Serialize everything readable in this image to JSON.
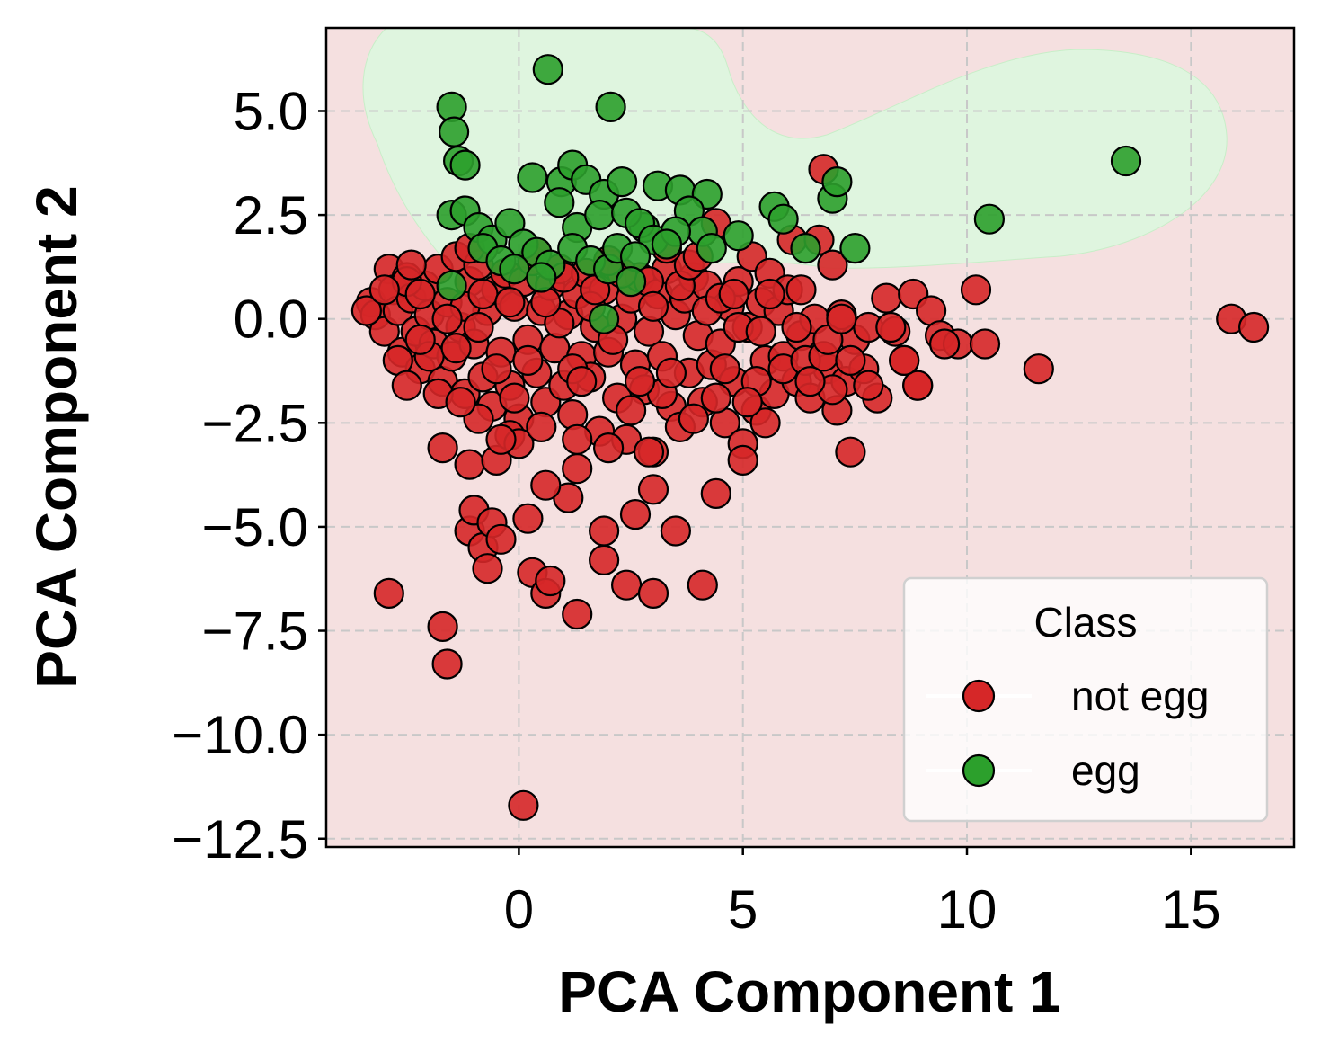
{
  "chart_data": {
    "type": "scatter",
    "xlabel": "PCA Component 1",
    "ylabel": "PCA Component 2",
    "xlim": [
      -4.3,
      17.3
    ],
    "ylim": [
      -12.7,
      7.0
    ],
    "xticks": [
      0,
      5,
      10,
      15
    ],
    "yticks": [
      5.0,
      2.5,
      0.0,
      -2.5,
      -5.0,
      -7.5,
      -10.0,
      -12.5
    ],
    "xtick_labels": [
      "0",
      "5",
      "10",
      "15"
    ],
    "ytick_labels": [
      "5.0",
      "2.5",
      "0.0",
      "−2.5",
      "−5.0",
      "−7.5",
      "−10.0",
      "−12.5"
    ],
    "grid": true,
    "background_regions": {
      "not egg_color": "#f5e0e0",
      "egg_color": "#dff5df"
    },
    "legend": {
      "title": "Class",
      "placement": "lower right",
      "entries": [
        {
          "label": "not egg",
          "color": "#d62728"
        },
        {
          "label": "egg",
          "color": "#2ca02c"
        }
      ]
    },
    "series": [
      {
        "name": "not egg",
        "color": "#d62728",
        "points": [
          [
            -3.3,
            0.4
          ],
          [
            -3.2,
            0.1
          ],
          [
            -3.0,
            -0.3
          ],
          [
            -2.9,
            1.2
          ],
          [
            -2.8,
            0.7
          ],
          [
            -2.7,
            0.2
          ],
          [
            -2.6,
            -0.8
          ],
          [
            -2.5,
            1.0
          ],
          [
            -2.4,
            0.5
          ],
          [
            -2.3,
            -0.3
          ],
          [
            -2.2,
            -1.2
          ],
          [
            -2.1,
            0.8
          ],
          [
            -2.0,
            0.1
          ],
          [
            -1.9,
            -0.6
          ],
          [
            -1.8,
            1.2
          ],
          [
            -1.7,
            -1.5
          ],
          [
            -1.6,
            0.4
          ],
          [
            -1.5,
            -0.9
          ],
          [
            -1.4,
            1.5
          ],
          [
            -1.3,
            -0.2
          ],
          [
            -1.2,
            -1.8
          ],
          [
            -1.1,
            0.9
          ],
          [
            -1.0,
            -0.6
          ],
          [
            -0.9,
            1.3
          ],
          [
            -0.8,
            -1.4
          ],
          [
            -0.7,
            0.2
          ],
          [
            -0.6,
            -2.1
          ],
          [
            -0.5,
            0.7
          ],
          [
            -0.4,
            -0.8
          ],
          [
            -0.3,
            1.1
          ],
          [
            -0.2,
            -1.6
          ],
          [
            -0.1,
            0.3
          ],
          [
            0.0,
            -2.4
          ],
          [
            0.1,
            0.9
          ],
          [
            0.2,
            -0.5
          ],
          [
            0.3,
            1.4
          ],
          [
            0.4,
            -1.3
          ],
          [
            0.5,
            0.2
          ],
          [
            0.6,
            -2.0
          ],
          [
            0.7,
            0.8
          ],
          [
            0.8,
            -0.7
          ],
          [
            0.9,
            1.2
          ],
          [
            1.0,
            -1.6
          ],
          [
            1.1,
            0.1
          ],
          [
            1.2,
            -2.3
          ],
          [
            1.3,
            0.6
          ],
          [
            1.4,
            -0.9
          ],
          [
            1.5,
            1.1
          ],
          [
            1.6,
            -1.4
          ],
          [
            1.7,
            -0.2
          ],
          [
            1.8,
            -2.7
          ],
          [
            1.9,
            0.7
          ],
          [
            2.0,
            -0.8
          ],
          [
            2.1,
            1.3
          ],
          [
            2.2,
            -1.9
          ],
          [
            2.3,
            0.0
          ],
          [
            2.4,
            -2.9
          ],
          [
            2.5,
            0.5
          ],
          [
            2.6,
            -1.1
          ],
          [
            2.7,
            1.0
          ],
          [
            2.8,
            -1.7
          ],
          [
            2.9,
            -0.3
          ],
          [
            3.0,
            -3.2
          ],
          [
            3.1,
            0.6
          ],
          [
            3.2,
            -0.9
          ],
          [
            3.3,
            1.2
          ],
          [
            3.4,
            -2.1
          ],
          [
            3.5,
            0.1
          ],
          [
            3.6,
            -2.6
          ],
          [
            3.7,
            0.5
          ],
          [
            3.8,
            -1.3
          ],
          [
            3.9,
            1.0
          ],
          [
            4.0,
            -0.4
          ],
          [
            4.1,
            -2.0
          ],
          [
            4.2,
            0.8
          ],
          [
            4.3,
            -1.1
          ],
          [
            4.4,
            2.3
          ],
          [
            4.5,
            -0.6
          ],
          [
            4.6,
            -2.5
          ],
          [
            4.7,
            0.3
          ],
          [
            4.8,
            -1.5
          ],
          [
            4.9,
            0.9
          ],
          [
            5.0,
            -3.0
          ],
          [
            5.1,
            -0.2
          ],
          [
            5.2,
            1.5
          ],
          [
            5.3,
            -2.2
          ],
          [
            5.4,
            0.4
          ],
          [
            5.5,
            -1.0
          ],
          [
            5.6,
            1.1
          ],
          [
            5.7,
            -1.8
          ],
          [
            5.8,
            0.2
          ],
          [
            5.9,
            -0.9
          ],
          [
            6.0,
            0.7
          ],
          [
            6.1,
            1.9
          ],
          [
            6.2,
            -1.5
          ],
          [
            6.3,
            -0.4
          ],
          [
            6.5,
            -1.9
          ],
          [
            6.6,
            0.0
          ],
          [
            6.7,
            1.9
          ],
          [
            6.8,
            3.6
          ],
          [
            6.9,
            -1.2
          ],
          [
            7.0,
            1.3
          ],
          [
            7.1,
            -2.2
          ],
          [
            7.2,
            0.1
          ],
          [
            7.3,
            -1.5
          ],
          [
            7.4,
            -3.2
          ],
          [
            7.5,
            -0.5
          ],
          [
            7.7,
            -1.2
          ],
          [
            7.8,
            -0.2
          ],
          [
            8.0,
            -1.9
          ],
          [
            8.2,
            0.5
          ],
          [
            8.4,
            -0.3
          ],
          [
            8.6,
            -1.0
          ],
          [
            8.8,
            0.6
          ],
          [
            8.9,
            -1.6
          ],
          [
            9.2,
            0.2
          ],
          [
            9.4,
            -0.4
          ],
          [
            9.8,
            -0.6
          ],
          [
            10.2,
            0.7
          ],
          [
            10.4,
            -0.6
          ],
          [
            11.6,
            -1.2
          ],
          [
            15.9,
            0.0
          ],
          [
            16.4,
            -0.2
          ],
          [
            -2.9,
            -6.6
          ],
          [
            -1.7,
            -7.4
          ],
          [
            -1.6,
            -8.3
          ],
          [
            0.1,
            -11.7
          ],
          [
            -1.1,
            -5.1
          ],
          [
            -1.0,
            -4.6
          ],
          [
            -0.8,
            -5.5
          ],
          [
            -0.7,
            -6.0
          ],
          [
            -0.6,
            -4.9
          ],
          [
            -0.4,
            -5.3
          ],
          [
            0.2,
            -4.8
          ],
          [
            0.3,
            -6.1
          ],
          [
            0.6,
            -6.6
          ],
          [
            0.7,
            -6.3
          ],
          [
            1.1,
            -4.3
          ],
          [
            1.3,
            -7.1
          ],
          [
            1.9,
            -5.8
          ],
          [
            1.9,
            -5.1
          ],
          [
            2.4,
            -6.4
          ],
          [
            2.6,
            -4.7
          ],
          [
            3.0,
            -6.6
          ],
          [
            3.0,
            -4.1
          ],
          [
            3.5,
            -5.1
          ],
          [
            4.1,
            -6.4
          ],
          [
            4.4,
            -4.2
          ],
          [
            -1.7,
            -3.1
          ],
          [
            -1.1,
            -3.5
          ],
          [
            -0.5,
            -3.4
          ],
          [
            0.6,
            -4.0
          ],
          [
            1.3,
            -2.9
          ],
          [
            1.3,
            -3.6
          ],
          [
            2.0,
            -3.1
          ],
          [
            2.9,
            -3.2
          ],
          [
            5.0,
            -3.4
          ],
          [
            5.5,
            -2.5
          ],
          [
            -0.2,
            -2.8
          ],
          [
            0.0,
            -3.0
          ],
          [
            -0.4,
            -2.9
          ],
          [
            -3.4,
            0.2
          ],
          [
            -2.7,
            -1.0
          ],
          [
            -2.5,
            0.9
          ],
          [
            -2.2,
            0.6
          ],
          [
            -2.0,
            -0.9
          ],
          [
            -1.8,
            -1.8
          ],
          [
            -1.4,
            -0.7
          ],
          [
            -1.2,
            0.3
          ],
          [
            -0.9,
            -2.4
          ],
          [
            -0.8,
            0.6
          ],
          [
            -0.5,
            -1.2
          ],
          [
            -0.2,
            0.4
          ],
          [
            0.2,
            -1.0
          ],
          [
            0.5,
            -2.6
          ],
          [
            0.9,
            -0.1
          ],
          [
            1.2,
            -1.2
          ],
          [
            1.6,
            0.3
          ],
          [
            2.1,
            -0.5
          ],
          [
            2.5,
            -2.2
          ],
          [
            2.9,
            0.9
          ],
          [
            3.2,
            -1.8
          ],
          [
            3.6,
            0.8
          ],
          [
            3.9,
            -2.4
          ],
          [
            4.2,
            0.2
          ],
          [
            4.6,
            -1.2
          ],
          [
            4.9,
            -0.2
          ],
          [
            5.3,
            -1.5
          ],
          [
            5.6,
            0.6
          ],
          [
            5.9,
            -1.2
          ],
          [
            6.2,
            -0.2
          ],
          [
            6.4,
            -1.0
          ],
          [
            6.8,
            -0.9
          ],
          [
            7.0,
            -1.7
          ],
          [
            7.4,
            -1.0
          ],
          [
            8.3,
            -0.2
          ],
          [
            8.9,
            -1.6
          ],
          [
            9.5,
            -0.6
          ],
          [
            -2.5,
            -1.6
          ],
          [
            -1.3,
            -2.0
          ],
          [
            -0.1,
            -1.9
          ],
          [
            1.4,
            -1.5
          ],
          [
            2.7,
            -1.5
          ],
          [
            3.4,
            -1.3
          ],
          [
            4.4,
            -1.9
          ],
          [
            5.1,
            -2.0
          ],
          [
            6.5,
            -1.5
          ],
          [
            7.8,
            -1.6
          ],
          [
            -3.0,
            0.7
          ],
          [
            -2.2,
            -0.5
          ],
          [
            -1.6,
            0.0
          ],
          [
            -0.9,
            -0.2
          ],
          [
            0.6,
            0.4
          ],
          [
            1.7,
            0.7
          ],
          [
            2.3,
            1.1
          ],
          [
            3.0,
            0.3
          ],
          [
            3.8,
            1.3
          ],
          [
            4.5,
            0.5
          ],
          [
            5.4,
            -0.3
          ],
          [
            6.9,
            -0.5
          ],
          [
            8.6,
            -1.0
          ],
          [
            -2.4,
            1.3
          ],
          [
            -1.1,
            1.7
          ],
          [
            0.4,
            1.6
          ],
          [
            1.0,
            1.0
          ],
          [
            2.0,
            1.4
          ],
          [
            3.3,
            1.7
          ],
          [
            4.0,
            1.5
          ],
          [
            4.8,
            0.6
          ],
          [
            6.3,
            0.7
          ],
          [
            7.2,
            0.0
          ]
        ]
      },
      {
        "name": "egg",
        "color": "#2ca02c",
        "points": [
          [
            0.65,
            6.0
          ],
          [
            2.05,
            5.1
          ],
          [
            -1.5,
            5.1
          ],
          [
            -1.45,
            4.5
          ],
          [
            -1.35,
            3.8
          ],
          [
            -1.2,
            3.7
          ],
          [
            0.3,
            3.4
          ],
          [
            0.95,
            3.3
          ],
          [
            1.2,
            3.7
          ],
          [
            1.5,
            3.35
          ],
          [
            1.9,
            3.0
          ],
          [
            2.3,
            3.3
          ],
          [
            2.8,
            2.2
          ],
          [
            3.1,
            3.2
          ],
          [
            3.6,
            3.1
          ],
          [
            4.2,
            3.0
          ],
          [
            3.8,
            2.6
          ],
          [
            4.1,
            2.1
          ],
          [
            0.9,
            2.8
          ],
          [
            1.3,
            2.2
          ],
          [
            1.8,
            2.5
          ],
          [
            2.4,
            2.55
          ],
          [
            2.7,
            2.3
          ],
          [
            3.0,
            1.9
          ],
          [
            3.5,
            2.1
          ],
          [
            4.3,
            1.7
          ],
          [
            4.9,
            2.0
          ],
          [
            5.7,
            2.7
          ],
          [
            5.9,
            2.4
          ],
          [
            6.4,
            1.7
          ],
          [
            7.0,
            2.9
          ],
          [
            7.1,
            3.3
          ],
          [
            7.5,
            1.7
          ],
          [
            10.5,
            2.4
          ],
          [
            13.55,
            3.8
          ],
          [
            -1.5,
            2.5
          ],
          [
            -1.2,
            2.6
          ],
          [
            -0.9,
            2.2
          ],
          [
            -0.6,
            1.9
          ],
          [
            -0.2,
            2.3
          ],
          [
            0.1,
            1.8
          ],
          [
            0.4,
            1.6
          ],
          [
            0.7,
            1.3
          ],
          [
            1.2,
            1.7
          ],
          [
            1.6,
            1.4
          ],
          [
            2.0,
            1.2
          ],
          [
            2.2,
            1.7
          ],
          [
            2.6,
            1.5
          ],
          [
            -0.8,
            1.7
          ],
          [
            -0.4,
            1.4
          ],
          [
            -0.1,
            1.2
          ],
          [
            0.5,
            1.0
          ],
          [
            1.9,
            -0.0
          ],
          [
            -1.5,
            0.8
          ],
          [
            2.5,
            0.9
          ],
          [
            3.3,
            1.8
          ]
        ]
      }
    ]
  }
}
